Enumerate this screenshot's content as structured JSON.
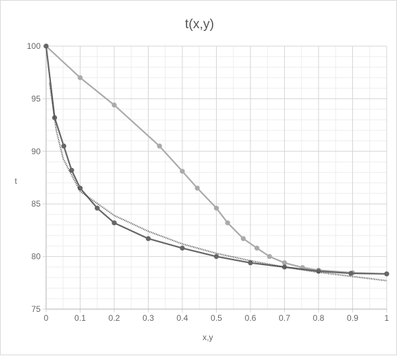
{
  "chart_data": {
    "type": "line",
    "title": "t(x,y)",
    "xlabel": "x,y",
    "ylabel": "t",
    "xlim": [
      0,
      1
    ],
    "ylim": [
      75,
      100
    ],
    "x_ticks": [
      "0",
      "0.1",
      "0.2",
      "0.3",
      "0.4",
      "0.5",
      "0.6",
      "0.7",
      "0.8",
      "0.9",
      "1"
    ],
    "y_ticks": [
      "75",
      "80",
      "85",
      "90",
      "95",
      "100"
    ],
    "grid": true,
    "legend": "none",
    "series": [
      {
        "color": "#aaaaaa",
        "style": "solid-markers",
        "points": [
          [
            0,
            100
          ],
          [
            0.1,
            97.0
          ],
          [
            0.2,
            94.4
          ],
          [
            0.333,
            90.5
          ],
          [
            0.4,
            88.1
          ],
          [
            0.444,
            86.5
          ],
          [
            0.5,
            84.6
          ],
          [
            0.533,
            83.2
          ],
          [
            0.579,
            81.7
          ],
          [
            0.619,
            80.8
          ],
          [
            0.656,
            80.0
          ],
          [
            0.7,
            79.4
          ],
          [
            0.753,
            78.95
          ],
          [
            0.8,
            78.7
          ],
          [
            0.9,
            78.45
          ],
          [
            1.0,
            78.35
          ]
        ]
      },
      {
        "color": "#666666",
        "style": "solid-markers",
        "points": [
          [
            0,
            100
          ],
          [
            0.025,
            93.2
          ],
          [
            0.052,
            90.5
          ],
          [
            0.075,
            88.2
          ],
          [
            0.1,
            86.5
          ],
          [
            0.15,
            84.6
          ],
          [
            0.2,
            83.2
          ],
          [
            0.3,
            81.7
          ],
          [
            0.4,
            80.8
          ],
          [
            0.5,
            80.0
          ],
          [
            0.6,
            79.4
          ],
          [
            0.7,
            79.0
          ],
          [
            0.8,
            78.6
          ],
          [
            0.895,
            78.4
          ],
          [
            1.0,
            78.35
          ]
        ]
      },
      {
        "color": "#444444",
        "style": "dotted",
        "points": [
          [
            0.01,
            96.5
          ],
          [
            0.03,
            92.0
          ],
          [
            0.05,
            89.3
          ],
          [
            0.1,
            86.2
          ],
          [
            0.2,
            83.9
          ],
          [
            0.3,
            82.4
          ],
          [
            0.4,
            81.2
          ],
          [
            0.5,
            80.3
          ],
          [
            0.6,
            79.6
          ],
          [
            0.7,
            79.0
          ],
          [
            0.8,
            78.5
          ],
          [
            0.9,
            78.1
          ],
          [
            1.0,
            77.7
          ]
        ]
      }
    ]
  }
}
